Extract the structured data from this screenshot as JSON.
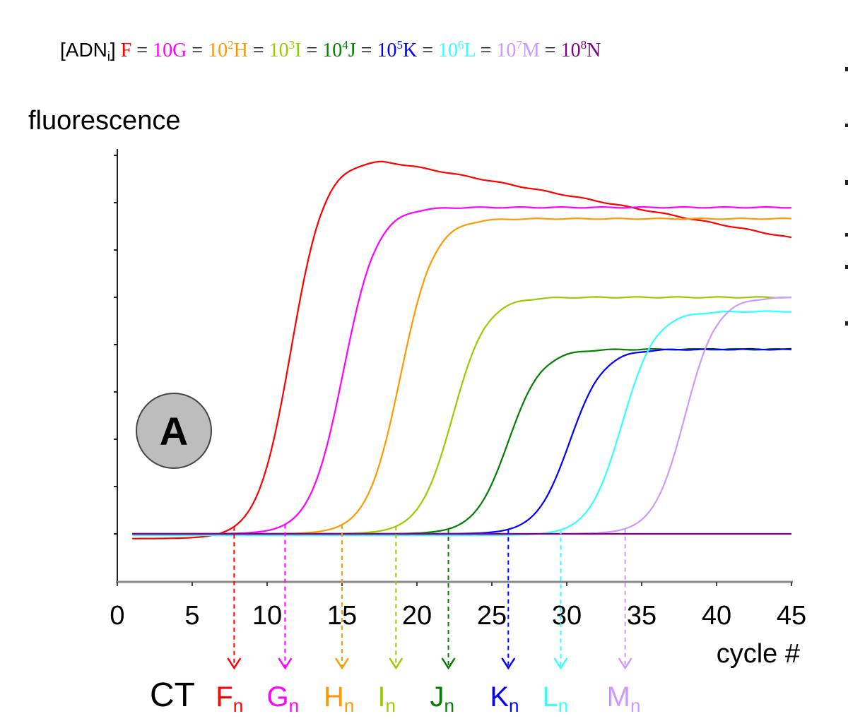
{
  "chart_data": {
    "type": "line",
    "title_label": "[ADN",
    "title_sub": "i",
    "title_close": "]",
    "equation": [
      {
        "name": "F",
        "text": "F",
        "color": "#ff0000"
      },
      {
        "text": " = ",
        "color": "#000000"
      },
      {
        "name": "G",
        "text": "10G",
        "color": "#ff00ff"
      },
      {
        "text": " = ",
        "color": "#000000"
      },
      {
        "name": "H",
        "base": "10",
        "exp": "2",
        "letter": "H",
        "color": "#ff9900"
      },
      {
        "text": " = ",
        "color": "#000000"
      },
      {
        "name": "I",
        "base": "10",
        "exp": "3",
        "letter": "I",
        "color": "#99cc00"
      },
      {
        "text": " = ",
        "color": "#000000"
      },
      {
        "name": "J",
        "base": "10",
        "exp": "4",
        "letter": "J",
        "color": "#008000"
      },
      {
        "text": " = ",
        "color": "#000000"
      },
      {
        "name": "K",
        "base": "10",
        "exp": "5",
        "letter": "K",
        "color": "#0000ff"
      },
      {
        "text": " = ",
        "color": "#000000"
      },
      {
        "name": "L",
        "base": "10",
        "exp": "6",
        "letter": "L",
        "color": "#33ffff"
      },
      {
        "text": " = ",
        "color": "#000000"
      },
      {
        "name": "M",
        "base": "10",
        "exp": "7",
        "letter": "M",
        "color": "#cc99ff"
      },
      {
        "text": " = ",
        "color": "#000000"
      },
      {
        "name": "N",
        "base": "10",
        "exp": "8",
        "letter": "N",
        "color": "#800080"
      }
    ],
    "ylabel": "fluorescence",
    "xlabel": "cycle #",
    "xlim": [
      0,
      45
    ],
    "ylim": [
      0,
      9
    ],
    "x_ticks": [
      0,
      5,
      10,
      15,
      20,
      25,
      30,
      35,
      40,
      45
    ],
    "y_tick_count": 9,
    "badge": "A",
    "ct_label": "CT",
    "baseline": 1.0,
    "threshold_sub": "n",
    "series": [
      {
        "name": "F",
        "color": "#ff0000",
        "base": 0.9,
        "plateau": 8.9,
        "mid": 11.6,
        "k": 0.9,
        "drift": -0.06,
        "ct": 7.8
      },
      {
        "name": "G",
        "color": "#ff00ff",
        "base": 1.0,
        "plateau": 7.9,
        "mid": 15.1,
        "k": 0.9,
        "drift": 0.0,
        "ct": 11.2
      },
      {
        "name": "H",
        "color": "#ff9900",
        "base": 1.0,
        "plateau": 7.66,
        "mid": 18.9,
        "k": 0.9,
        "drift": 0.0,
        "ct": 15.0
      },
      {
        "name": "I",
        "color": "#99cc00",
        "base": 1.0,
        "plateau": 6.0,
        "mid": 22.4,
        "k": 0.9,
        "drift": 0.0,
        "ct": 18.6
      },
      {
        "name": "J",
        "color": "#008000",
        "base": 1.0,
        "plateau": 4.9,
        "mid": 26.1,
        "k": 0.9,
        "drift": 0.0,
        "ct": 22.1
      },
      {
        "name": "K",
        "color": "#0000ff",
        "base": 1.0,
        "plateau": 4.9,
        "mid": 30.2,
        "k": 0.9,
        "drift": 0.0,
        "ct": 26.1
      },
      {
        "name": "L",
        "color": "#33ffff",
        "base": 0.97,
        "plateau": 5.7,
        "mid": 33.7,
        "k": 0.9,
        "drift": 0.0,
        "ct": 29.6
      },
      {
        "name": "M",
        "color": "#cc99ff",
        "base": 1.0,
        "plateau": 6.0,
        "mid": 37.9,
        "k": 0.95,
        "drift": 0.0,
        "ct": 33.9
      },
      {
        "name": "N",
        "color": "#800080",
        "base": 1.0,
        "plateau": 1.0,
        "mid": 99,
        "k": 1.0,
        "drift": 0.0,
        "ct": null
      }
    ]
  }
}
